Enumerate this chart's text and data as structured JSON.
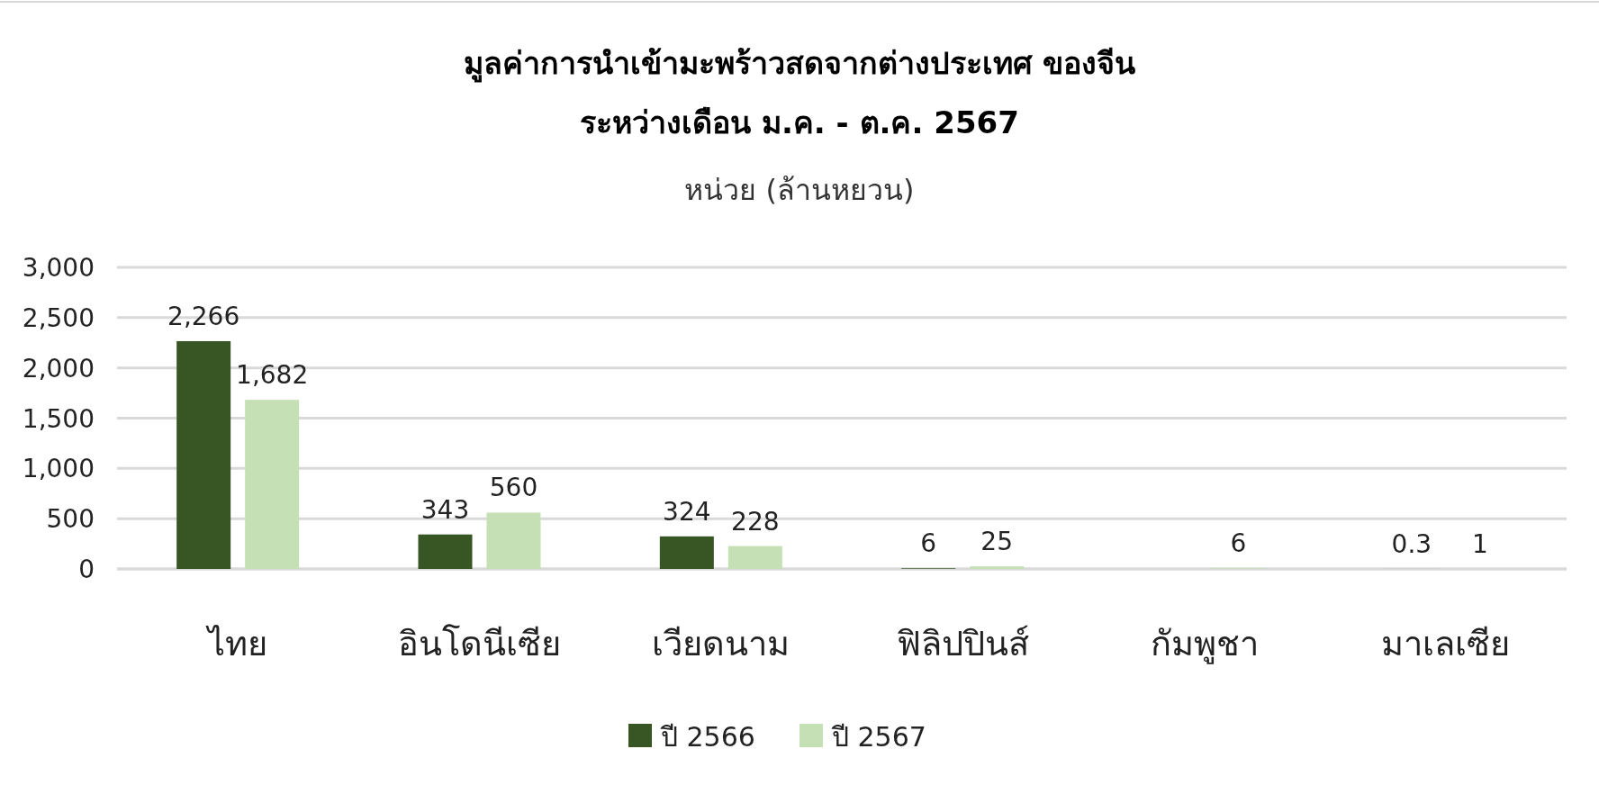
{
  "chart_data": {
    "type": "bar",
    "title": "มูลค่าการนำเข้ามะพร้าวสดจากต่างประเทศ ของจีน\nระหว่างเดือน ม.ค. - ต.ค. 2567",
    "subtitle": "หน่วย (ล้านหยวน)",
    "categories": [
      "ไทย",
      "อินโดนีเซีย",
      "เวียดนาม",
      "ฟิลิปปินส์",
      "กัมพูชา",
      "มาเลเซีย"
    ],
    "series": [
      {
        "name": "ปี 2566",
        "color": "#375623",
        "values": [
          2266,
          343,
          324,
          6,
          null,
          0.3
        ],
        "value_labels": [
          "2,266",
          "343",
          "324",
          "6",
          null,
          "0.3"
        ]
      },
      {
        "name": "ปี 2567",
        "color": "#c5e0b4",
        "values": [
          1682,
          560,
          228,
          25,
          6,
          1
        ],
        "value_labels": [
          "1,682",
          "560",
          "228",
          "25",
          "6",
          "1"
        ]
      }
    ],
    "ylim": [
      0,
      3000
    ],
    "yticks": [
      0,
      {
        "value": 500,
        "label": "500"
      },
      {
        "value": 1000,
        "label": "1,000"
      },
      {
        "value": 1500,
        "label": "1,500"
      },
      {
        "value": 2000,
        "label": "2,000"
      },
      {
        "value": 2500,
        "label": "2,500"
      },
      {
        "value": 3000,
        "label": "3,000"
      }
    ],
    "grid": "y",
    "legend": "bottom"
  }
}
